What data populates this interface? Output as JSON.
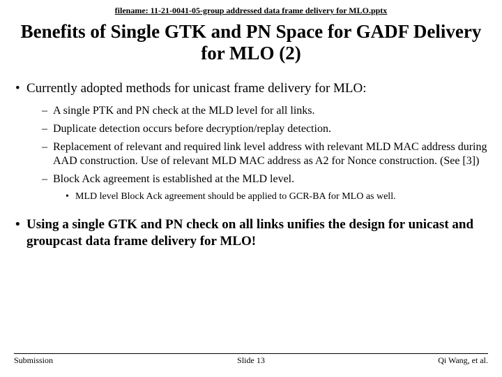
{
  "filename_label": "filename:",
  "filename": "11-21-0041-05-group addressed data frame delivery for MLO.pptx",
  "title": "Benefits of Single GTK and PN Space for GADF Delivery for MLO (2)",
  "bullets": {
    "b1": "Currently adopted methods for unicast frame delivery for MLO:",
    "b1_1": "A single PTK and PN check at the MLD level for all links.",
    "b1_2": "Duplicate detection occurs before decryption/replay detection.",
    "b1_3": "Replacement of relevant and required link level address with relevant MLD MAC address during AAD construction.  Use of relevant MLD MAC address as A2 for Nonce construction. (See [3])",
    "b1_4": "Block Ack agreement is established at the MLD level.",
    "b1_4_1": "MLD level Block Ack agreement should be applied to GCR-BA for MLO as well.",
    "b2": "Using a single GTK and PN check on all links unifies the design for unicast and groupcast data frame delivery for MLO!"
  },
  "footer": {
    "left": "Submission",
    "center": "Slide 13",
    "right": "Qi Wang, et al."
  }
}
